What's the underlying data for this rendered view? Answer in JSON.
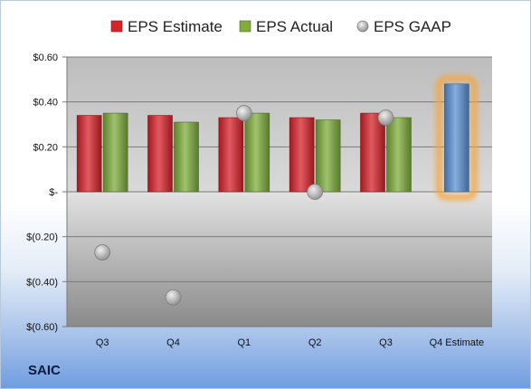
{
  "company": "SAIC",
  "chart_data": {
    "type": "bar",
    "categories": [
      "Q3",
      "Q4",
      "Q1",
      "Q2",
      "Q3",
      "Q4 Estimate"
    ],
    "series": [
      {
        "name": "EPS Estimate",
        "kind": "bar",
        "color": "#d8232a",
        "values": [
          0.34,
          0.34,
          0.33,
          0.33,
          0.35,
          null
        ]
      },
      {
        "name": "EPS Actual",
        "kind": "bar",
        "color": "#7fae3c",
        "values": [
          0.35,
          0.31,
          0.35,
          0.32,
          0.33,
          null
        ]
      },
      {
        "name": "EPS GAAP",
        "kind": "marker",
        "color": "#b0b0b0",
        "values": [
          -0.27,
          -0.47,
          0.35,
          0.0,
          0.33,
          null
        ]
      }
    ],
    "estimate": {
      "category": "Q4 Estimate",
      "value": 0.48,
      "color": "#5b92d6",
      "glow": "#f5a642"
    },
    "ylim": [
      -0.6,
      0.6
    ],
    "yticks": [
      {
        "value": 0.6,
        "label": "$0.60"
      },
      {
        "value": 0.4,
        "label": "$0.40"
      },
      {
        "value": 0.2,
        "label": "$0.20"
      },
      {
        "value": 0,
        "label": "$-"
      },
      {
        "value": -0.2,
        "label": "$(0.20)"
      },
      {
        "value": -0.4,
        "label": "$(0.40)"
      },
      {
        "value": -0.6,
        "label": "$(0.60)"
      }
    ],
    "legend_position": "top",
    "grid": true
  }
}
